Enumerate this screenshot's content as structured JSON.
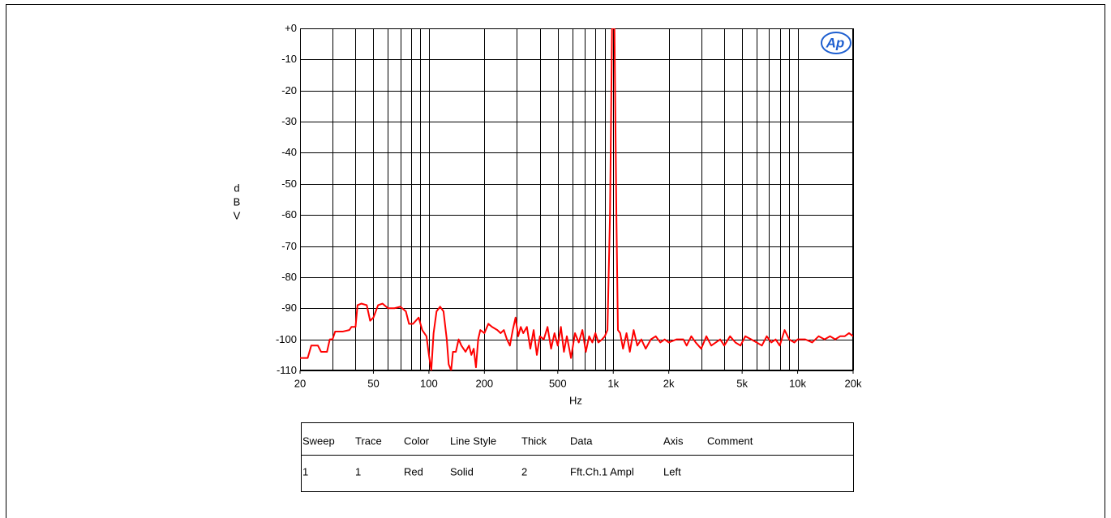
{
  "chart_data": {
    "type": "line",
    "logo": "Ap",
    "xlabel": "Hz",
    "ylabel": "dBV",
    "xscale": "log",
    "grid": true,
    "xlim": [
      20,
      20000
    ],
    "ylim": [
      -110,
      0
    ],
    "xticks": [
      20,
      50,
      100,
      200,
      500,
      {
        "value": 1000,
        "label": "1k"
      },
      {
        "value": 2000,
        "label": "2k"
      },
      {
        "value": 5000,
        "label": "5k"
      },
      {
        "value": 10000,
        "label": "10k"
      },
      {
        "value": 20000,
        "label": "20k"
      }
    ],
    "xgrid": [
      20,
      30,
      40,
      50,
      60,
      70,
      80,
      90,
      100,
      200,
      300,
      400,
      500,
      600,
      700,
      800,
      900,
      1000,
      2000,
      3000,
      4000,
      5000,
      6000,
      7000,
      8000,
      9000,
      10000,
      20000
    ],
    "yticks": [
      {
        "value": 0,
        "label": "+0"
      },
      -10,
      -20,
      -30,
      -40,
      -50,
      -60,
      -70,
      -80,
      -90,
      -100,
      -110
    ],
    "series": [
      {
        "name": "Fft.Ch.1 Ampl",
        "color": "#ff0000",
        "x": [
          20,
          22,
          23,
          25,
          26,
          28,
          29,
          30,
          31,
          34,
          37,
          38,
          40,
          41,
          43,
          46,
          48,
          50,
          53,
          56,
          60,
          65,
          70,
          75,
          78,
          82,
          88,
          92,
          97,
          100,
          103,
          106,
          110,
          115,
          120,
          125,
          128,
          132,
          135,
          140,
          145,
          150,
          158,
          165,
          170,
          175,
          180,
          185,
          190,
          200,
          210,
          220,
          235,
          245,
          255,
          265,
          275,
          285,
          295,
          305,
          315,
          325,
          340,
          355,
          370,
          385,
          400,
          420,
          440,
          460,
          480,
          500,
          520,
          540,
          560,
          590,
          620,
          650,
          680,
          710,
          740,
          770,
          800,
          830,
          870,
          900,
          930,
          960,
          985,
          1000,
          1015,
          1040,
          1060,
          1090,
          1130,
          1180,
          1230,
          1290,
          1350,
          1420,
          1500,
          1600,
          1700,
          1800,
          1900,
          2000,
          2200,
          2400,
          2500,
          2650,
          2800,
          3000,
          3200,
          3400,
          3600,
          3800,
          4000,
          4300,
          4600,
          4900,
          5200,
          5600,
          6000,
          6400,
          6800,
          7200,
          7600,
          8000,
          8500,
          9000,
          9600,
          10000,
          11000,
          12000,
          13000,
          14000,
          15000,
          16000,
          17000,
          18000,
          19000,
          20000
        ],
        "values": [
          -106,
          -106,
          -102,
          -102,
          -104,
          -104,
          -100,
          -100,
          -97.5,
          -97.5,
          -97,
          -96,
          -96,
          -89,
          -88.5,
          -89,
          -94,
          -93,
          -89,
          -88.5,
          -90,
          -90,
          -89.5,
          -91,
          -95,
          -95,
          -93,
          -97,
          -99,
          -105,
          -110,
          -98,
          -91,
          -89.5,
          -91,
          -100,
          -108,
          -110,
          -104,
          -104,
          -100,
          -102,
          -104,
          -102,
          -105,
          -103,
          -109,
          -100,
          -97,
          -98,
          -95,
          -96,
          -97,
          -98,
          -97,
          -100,
          -102,
          -97,
          -93,
          -99,
          -96,
          -98,
          -96,
          -103,
          -97,
          -105,
          -99,
          -100,
          -96,
          -103,
          -98,
          -102,
          -96,
          -104,
          -99,
          -106,
          -98,
          -101,
          -97,
          -104,
          -99,
          -101,
          -98,
          -101,
          -100,
          -99,
          -97,
          -60,
          0,
          0,
          0,
          -60,
          -97,
          -98,
          -103,
          -98,
          -104,
          -97,
          -102,
          -100,
          -103,
          -100,
          -99,
          -101,
          -100,
          -101,
          -100,
          -100,
          -102,
          -99,
          -101,
          -103,
          -99,
          -102,
          -101,
          -100,
          -102,
          -99,
          -101,
          -102,
          -99,
          -100,
          -101,
          -102,
          -99,
          -101,
          -100,
          -102,
          -97,
          -100,
          -101,
          -100,
          -100,
          -101,
          -99,
          -100,
          -99,
          -100,
          -99,
          -99,
          -98,
          -99
        ]
      }
    ],
    "legend_table": {
      "columns": [
        "Sweep",
        "Trace",
        "Color",
        "Line Style",
        "Thick",
        "Data",
        "Axis",
        "Comment"
      ],
      "rows": [
        [
          "1",
          "1",
          "Red",
          "Solid",
          "2",
          "Fft.Ch.1 Ampl",
          "Left",
          ""
        ]
      ]
    }
  }
}
